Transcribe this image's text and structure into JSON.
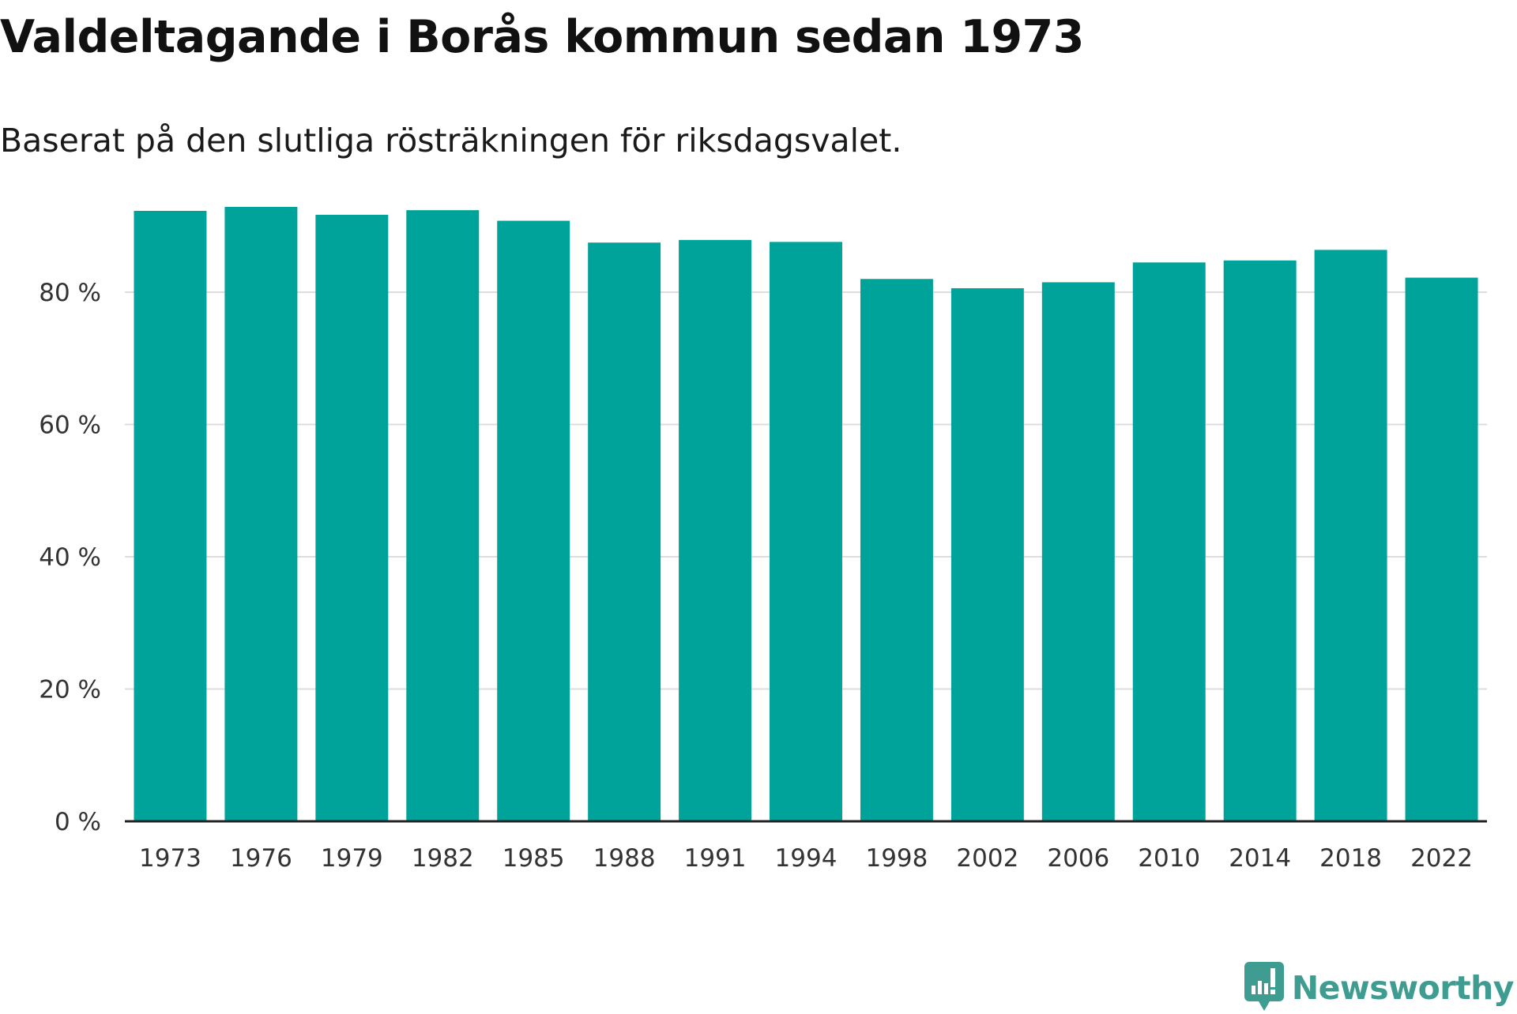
{
  "title": "Valdeltagande i Borås kommun sedan 1973",
  "subtitle": "Baserat på den slutliga rösträkningen för riksdagsvalet.",
  "brand": {
    "name": "Newsworthy",
    "icon": "newsworthy-logo-icon",
    "color": "#3f9c91"
  },
  "colors": {
    "bar": "#00a399",
    "grid": "#dddddd",
    "axis": "#222222",
    "text": "#333333"
  },
  "chart_data": {
    "type": "bar",
    "title": "Valdeltagande i Borås kommun sedan 1973",
    "subtitle": "Baserat på den slutliga rösträkningen för riksdagsvalet.",
    "xlabel": "",
    "ylabel": "",
    "categories": [
      "1973",
      "1976",
      "1979",
      "1982",
      "1985",
      "1988",
      "1991",
      "1994",
      "1998",
      "2002",
      "2006",
      "2010",
      "2014",
      "2018",
      "2022"
    ],
    "values": [
      92.3,
      92.9,
      91.7,
      92.4,
      90.8,
      87.5,
      87.9,
      87.6,
      82.0,
      80.6,
      81.5,
      84.5,
      84.8,
      86.4,
      82.2
    ],
    "ylim": [
      0,
      100
    ],
    "yticks": [
      0,
      20,
      40,
      60,
      80
    ],
    "ytick_labels": [
      "0 %",
      "20 %",
      "40 %",
      "60 %",
      "80 %"
    ],
    "grid": true,
    "legend": "none"
  }
}
